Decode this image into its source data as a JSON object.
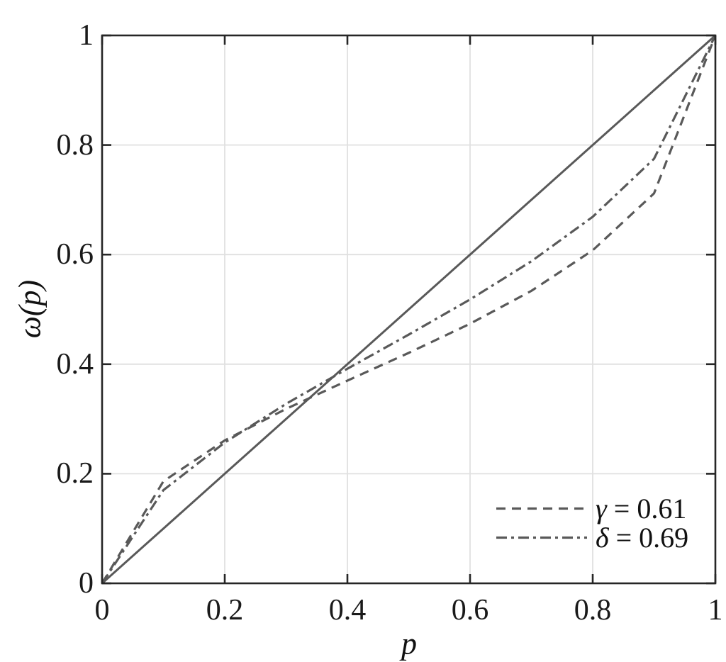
{
  "figure": {
    "background": "#ffffff"
  },
  "chart_data": {
    "type": "line",
    "title": "",
    "xlabel": "p",
    "ylabel": "ω(p)",
    "xlim": [
      0,
      1
    ],
    "ylim": [
      0,
      1
    ],
    "grid": true,
    "grid_color": "#e0e0e0",
    "axis_color": "#262626",
    "text_color": "#1a1a1a",
    "legend_position": "lower-right",
    "legend_box": false,
    "x_ticks": [
      0,
      0.2,
      0.4,
      0.6,
      0.8,
      1
    ],
    "x_tick_labels": [
      "0",
      "0.2",
      "0.4",
      "0.6",
      "0.8",
      "1"
    ],
    "y_ticks": [
      0,
      0.2,
      0.4,
      0.6,
      0.8,
      1
    ],
    "y_tick_labels": [
      "0",
      "0.2",
      "0.4",
      "0.6",
      "0.8",
      "1"
    ],
    "x": [
      0,
      0.1,
      0.2,
      0.3,
      0.4,
      0.5,
      0.6,
      0.7,
      0.8,
      0.9,
      1
    ],
    "series": [
      {
        "name": "identity-line",
        "style": "solid",
        "color": "#595959",
        "legend_symbol": null,
        "legend_rest": null,
        "values": [
          0,
          0.1,
          0.2,
          0.3,
          0.4,
          0.5,
          0.6,
          0.7,
          0.8,
          0.9,
          1
        ]
      },
      {
        "name": "weighting-gamma",
        "style": "dashed",
        "color": "#595959",
        "legend_symbol": "γ",
        "legend_rest": " = 0.61",
        "values": [
          0,
          0.1863,
          0.2609,
          0.3184,
          0.37,
          0.4206,
          0.4738,
          0.5338,
          0.6078,
          0.7117,
          1
        ]
      },
      {
        "name": "weighting-delta",
        "style": "dashdot",
        "color": "#595959",
        "legend_symbol": "δ",
        "legend_rest": " = 0.69",
        "values": [
          0,
          0.1701,
          0.257,
          0.3276,
          0.3917,
          0.454,
          0.5181,
          0.5878,
          0.669,
          0.7749,
          1
        ]
      }
    ]
  }
}
